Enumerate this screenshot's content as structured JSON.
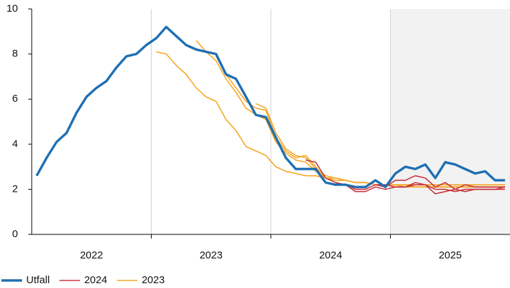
{
  "chart_data": {
    "type": "line",
    "xlim": [
      -0.5,
      47.5
    ],
    "xticks": [
      {
        "value": 5.5,
        "label": "2022"
      },
      {
        "value": 17.5,
        "label": "2023"
      },
      {
        "value": 29.5,
        "label": "2024"
      },
      {
        "value": 41.5,
        "label": "2025"
      }
    ],
    "xgrid": [
      11.5,
      23.5,
      35.5
    ],
    "shade_from": 35.5,
    "ylim": [
      0,
      10
    ],
    "yticks": [
      0,
      2,
      4,
      6,
      8,
      10
    ],
    "series": [
      {
        "name": "Utfall",
        "color": "#1f6fb4",
        "lines": [
          {
            "x": [
              0,
              1,
              2,
              3,
              4,
              5,
              6,
              7,
              8,
              9,
              10,
              11,
              12,
              13,
              14,
              15,
              16,
              17,
              18,
              19,
              20,
              21,
              22,
              23,
              24,
              25,
              26,
              27,
              28,
              29,
              30,
              31,
              32,
              33,
              34,
              35,
              36,
              37,
              38,
              39,
              40,
              41,
              42,
              43,
              44,
              45,
              46,
              47
            ],
            "values": [
              2.6,
              3.4,
              4.1,
              4.5,
              5.4,
              6.1,
              6.5,
              6.8,
              7.4,
              7.9,
              8.0,
              8.4,
              8.7,
              9.2,
              8.8,
              8.4,
              8.2,
              8.1,
              8.0,
              7.1,
              6.9,
              6.1,
              5.3,
              5.2,
              4.3,
              3.4,
              2.9,
              2.9,
              2.9,
              2.3,
              2.2,
              2.2,
              2.1,
              2.1,
              2.4,
              2.1,
              2.7,
              3.0,
              2.9,
              3.1,
              2.5,
              3.2,
              3.1,
              2.9,
              2.7,
              2.8,
              2.4,
              2.4
            ]
          }
        ]
      },
      {
        "name": "2024",
        "color": "#c8323c",
        "lines": [
          {
            "x": [
              27,
              28,
              29,
              30,
              31,
              32,
              33,
              34,
              35,
              36,
              37,
              38,
              39,
              40,
              41,
              42,
              43,
              44,
              45,
              46,
              47
            ],
            "values": [
              3.3,
              3.2,
              2.5,
              2.3,
              2.2,
              1.9,
              1.9,
              2.1,
              2.0,
              2.1,
              2.1,
              2.3,
              2.2,
              1.8,
              1.9,
              2.0,
              1.9,
              2.0,
              2.0,
              2.0,
              2.0
            ]
          },
          {
            "x": [
              30,
              31,
              32,
              33,
              34,
              35,
              36,
              37,
              38,
              39,
              40,
              41,
              42,
              43,
              44,
              45,
              46,
              47
            ],
            "values": [
              2.3,
              2.2,
              2.0,
              2.0,
              2.2,
              2.1,
              2.4,
              2.4,
              2.6,
              2.5,
              2.1,
              2.3,
              2.0,
              2.2,
              2.1,
              2.1,
              2.1,
              2.1
            ]
          },
          {
            "x": [
              34,
              35,
              36,
              37,
              38,
              39,
              40,
              41,
              42,
              43,
              44,
              45,
              46,
              47
            ],
            "values": [
              2.2,
              2.2,
              2.1,
              2.1,
              2.2,
              2.2,
              2.0,
              2.0,
              1.9,
              2.0,
              2.0,
              2.0,
              2.0,
              2.1
            ]
          }
        ]
      },
      {
        "name": "2023",
        "color": "#f5a623",
        "lines": [
          {
            "x": [
              12,
              13,
              14,
              15,
              16,
              17,
              18,
              19,
              20,
              21,
              22,
              23,
              24,
              25,
              26,
              27,
              28,
              29,
              30,
              31,
              32,
              33,
              34,
              35,
              36,
              37,
              38,
              39,
              40,
              41,
              42,
              43,
              44,
              45,
              46,
              47
            ],
            "values": [
              8.1,
              8.0,
              7.5,
              7.1,
              6.5,
              6.1,
              5.9,
              5.1,
              4.6,
              3.9,
              3.7,
              3.5,
              3.0,
              2.8,
              2.7,
              2.6,
              2.6,
              2.5,
              2.4,
              2.4,
              2.3,
              2.3,
              2.2,
              2.2,
              2.2,
              2.2,
              2.1,
              2.1,
              2.1,
              2.1,
              2.1,
              2.1,
              2.1,
              2.1,
              2.1,
              2.1
            ]
          },
          {
            "x": [
              16,
              17,
              18,
              19,
              20,
              21,
              22,
              23,
              24,
              25,
              26,
              27,
              28,
              29,
              30,
              31,
              32,
              33,
              34,
              35,
              36,
              37,
              38,
              39,
              40,
              41,
              42,
              43,
              44,
              45,
              46,
              47
            ],
            "values": [
              8.6,
              8.1,
              7.7,
              6.9,
              6.3,
              5.6,
              5.3,
              5.1,
              4.1,
              3.6,
              3.3,
              3.2,
              2.8,
              2.5,
              2.5,
              2.4,
              2.3,
              2.3,
              2.2,
              2.2,
              2.2,
              2.2,
              2.2,
              2.2,
              2.2,
              2.2,
              2.2,
              2.2,
              2.2,
              2.2,
              2.2,
              2.2
            ]
          },
          {
            "x": [
              18,
              19,
              20,
              21,
              22,
              23,
              24,
              25,
              26,
              27,
              28,
              29,
              30,
              31,
              32,
              33,
              34,
              35,
              36,
              37,
              38,
              39,
              40,
              41,
              42,
              43,
              44,
              45,
              46,
              47
            ],
            "values": [
              7.9,
              7.1,
              6.5,
              5.9,
              5.6,
              5.5,
              4.3,
              3.7,
              3.4,
              3.5,
              3.0,
              2.5,
              2.4,
              2.4,
              2.3,
              2.3,
              2.2,
              2.2,
              2.2,
              2.1,
              2.1,
              2.1,
              2.1,
              2.1,
              2.1,
              2.1,
              2.1,
              2.1,
              2.1,
              2.1
            ]
          },
          {
            "x": [
              22,
              23,
              24,
              25,
              26,
              27,
              28,
              29,
              30,
              31,
              32,
              33,
              34,
              35,
              36,
              37,
              38,
              39,
              40,
              41,
              42,
              43,
              44,
              45,
              46,
              47
            ],
            "values": [
              5.8,
              5.6,
              4.5,
              3.8,
              3.5,
              3.4,
              2.9,
              2.6,
              2.5,
              2.4,
              2.3,
              2.3,
              2.2,
              2.2,
              2.2,
              2.2,
              2.2,
              2.2,
              2.2,
              2.2,
              2.2,
              2.2,
              2.2,
              2.2,
              2.2,
              2.2
            ]
          }
        ]
      }
    ]
  }
}
